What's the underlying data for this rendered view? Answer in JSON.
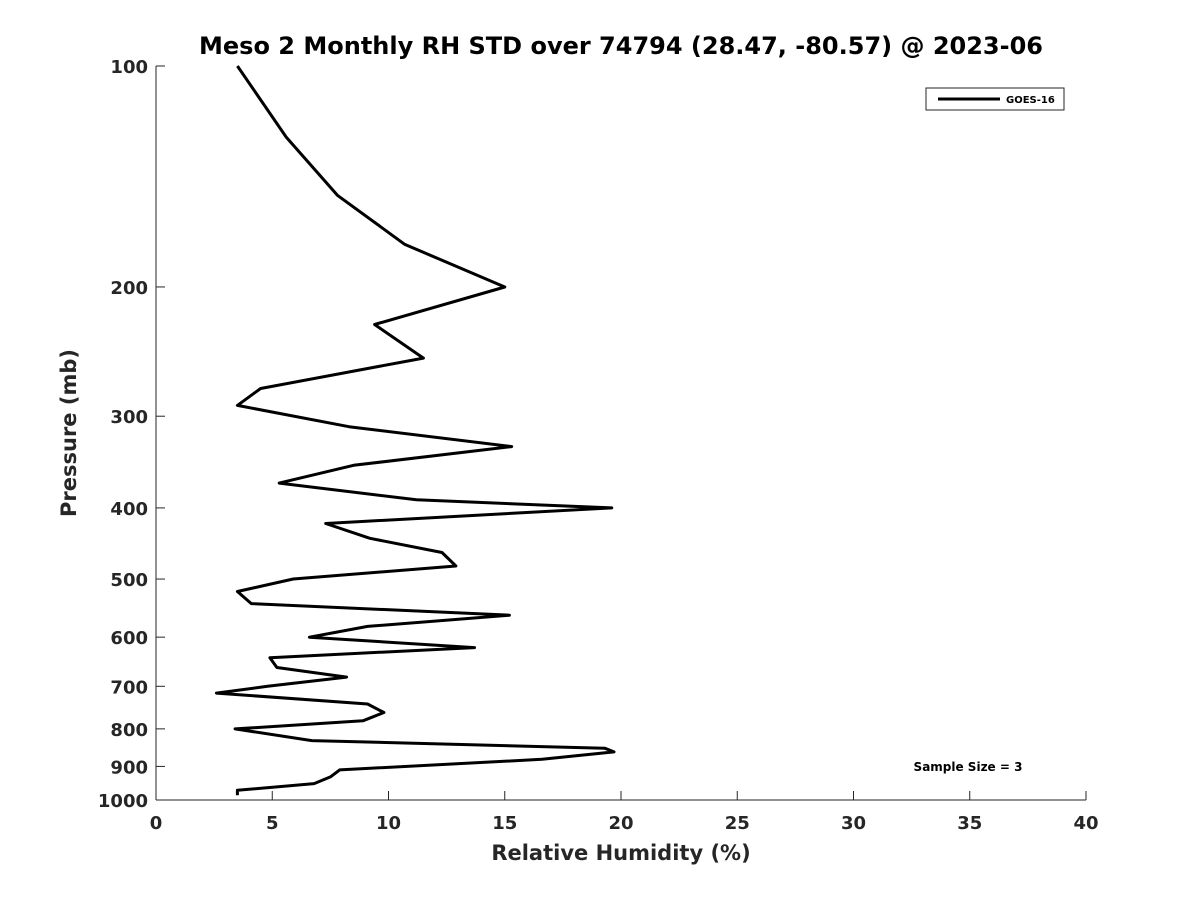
{
  "chart_data": {
    "type": "line",
    "title": "Meso 2 Monthly RH STD over 74794 (28.47, -80.57) @ 2023-06",
    "xlabel": "Relative Humidity (%)",
    "ylabel": "Pressure (mb)",
    "xlim": [
      0,
      40
    ],
    "ylim": [
      1000,
      100
    ],
    "y_scale": "log",
    "y_reversed": true,
    "grid": false,
    "xticks": [
      "0",
      "5",
      "10",
      "15",
      "20",
      "25",
      "30",
      "35",
      "40"
    ],
    "yticks": [
      "100",
      "200",
      "300",
      "400",
      "500",
      "600",
      "700",
      "800",
      "900",
      "1000"
    ],
    "legend": {
      "placement": "top-right"
    },
    "annotation": "Sample Size = 3",
    "series": [
      {
        "name": "GOES-16",
        "color": "#000000",
        "points": [
          [
            3.5,
            100
          ],
          [
            5.6,
            125
          ],
          [
            7.8,
            150
          ],
          [
            10.7,
            175
          ],
          [
            15.0,
            200
          ],
          [
            9.4,
            225
          ],
          [
            11.5,
            250
          ],
          [
            4.5,
            275
          ],
          [
            3.5,
            290
          ],
          [
            8.3,
            310
          ],
          [
            15.3,
            330
          ],
          [
            8.5,
            350
          ],
          [
            5.3,
            370
          ],
          [
            11.2,
            390
          ],
          [
            19.6,
            400
          ],
          [
            7.3,
            420
          ],
          [
            9.2,
            440
          ],
          [
            12.3,
            460
          ],
          [
            12.9,
            480
          ],
          [
            5.9,
            500
          ],
          [
            3.5,
            520
          ],
          [
            4.1,
            540
          ],
          [
            15.2,
            560
          ],
          [
            9.1,
            580
          ],
          [
            6.6,
            600
          ],
          [
            13.7,
            620
          ],
          [
            4.9,
            640
          ],
          [
            5.2,
            660
          ],
          [
            8.2,
            680
          ],
          [
            4.8,
            700
          ],
          [
            2.6,
            715
          ],
          [
            9.1,
            740
          ],
          [
            9.8,
            760
          ],
          [
            8.9,
            780
          ],
          [
            3.4,
            800
          ],
          [
            6.7,
            830
          ],
          [
            19.3,
            850
          ],
          [
            19.7,
            860
          ],
          [
            16.6,
            880
          ],
          [
            7.9,
            910
          ],
          [
            7.5,
            930
          ],
          [
            6.8,
            950
          ],
          [
            3.5,
            970
          ],
          [
            3.5,
            985
          ]
        ]
      }
    ]
  }
}
